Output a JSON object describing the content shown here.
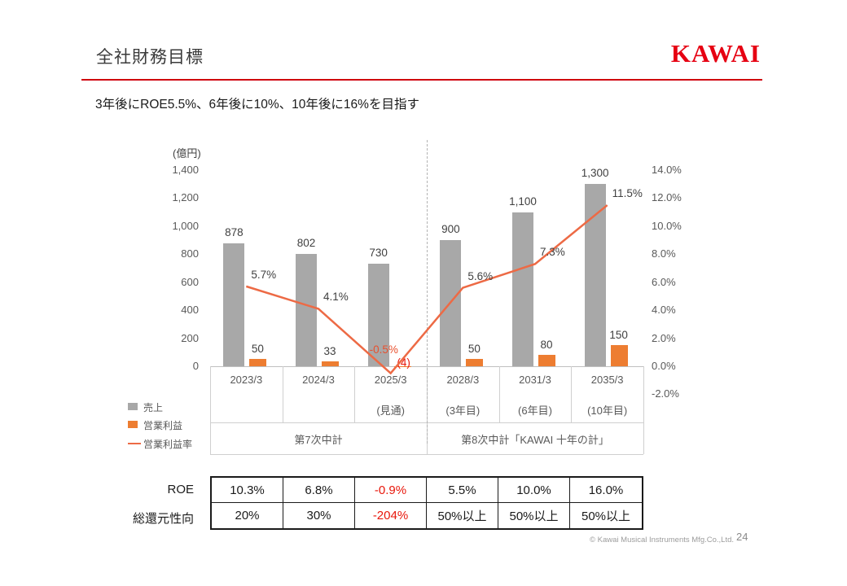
{
  "slide": {
    "title": "全社財務目標",
    "subtitle": "3年後にROE5.5%、6年後に10%、10年後に16%を目指す",
    "logo": "KAWAI",
    "footer_copyright": "© Kawai Musical Instruments Mfg.Co.,Ltd.",
    "page_number": "24"
  },
  "colors": {
    "kawai_red": "#e60012",
    "sales_gray": "#a8a8a8",
    "profit_orange": "#ed7d31",
    "margin_line": "#ed6a45",
    "negative_red": "#e8170b",
    "negative_label": "#e8502e",
    "axis_text": "#595959",
    "grid_gray": "#cfcfcf"
  },
  "chart_data": {
    "type": "bar+line combo",
    "unit_label": "(億円)",
    "categories": [
      "2023/3",
      "2024/3",
      "2025/3",
      "2028/3",
      "2031/3",
      "2035/3"
    ],
    "category_sublabels": [
      "",
      "",
      "(見通)",
      "(3年目)",
      "(6年目)",
      "(10年目)"
    ],
    "series": [
      {
        "name": "売上",
        "type": "bar",
        "axis": "left",
        "color": "#a8a8a8",
        "values": [
          878,
          802,
          730,
          900,
          1100,
          1300
        ],
        "labels": [
          "878",
          "802",
          "730",
          "900",
          "1,100",
          "1,300"
        ]
      },
      {
        "name": "営業利益",
        "type": "bar",
        "axis": "left",
        "color": "#ed7d31",
        "values": [
          50,
          33,
          -4,
          50,
          80,
          150
        ],
        "labels": [
          "50",
          "33",
          "(4)",
          "50",
          "80",
          "150"
        ]
      },
      {
        "name": "営業利益率",
        "type": "line",
        "axis": "right",
        "color": "#ed6a45",
        "values": [
          5.7,
          4.1,
          -0.5,
          5.6,
          7.3,
          11.5
        ],
        "labels": [
          "5.7%",
          "4.1%",
          "-0.5%",
          "5.6%",
          "7.3%",
          "11.5%"
        ]
      }
    ],
    "left_axis": {
      "min": 0,
      "max": 1400,
      "step": 200,
      "ticks": [
        "1,400",
        "1,200",
        "1,000",
        "800",
        "600",
        "400",
        "200",
        "0"
      ]
    },
    "right_axis": {
      "min": -2,
      "max": 14,
      "step": 2,
      "ticks": [
        "14.0%",
        "12.0%",
        "10.0%",
        "8.0%",
        "6.0%",
        "4.0%",
        "2.0%",
        "0.0%",
        "-2.0%"
      ]
    },
    "group_labels": [
      "第7次中計",
      "第8次中計「KAWAI 十年の計」"
    ],
    "divider_after_category_index": 2,
    "grid": "off",
    "legend_position": "bottom-left"
  },
  "table": {
    "rows": [
      {
        "label": "ROE",
        "values": [
          "10.3%",
          "6.8%",
          "-0.9%",
          "5.5%",
          "10.0%",
          "16.0%"
        ],
        "negative": [
          false,
          false,
          true,
          false,
          false,
          false
        ]
      },
      {
        "label": "総還元性向",
        "values": [
          "20%",
          "30%",
          "-204%",
          "50%以上",
          "50%以上",
          "50%以上"
        ],
        "negative": [
          false,
          false,
          true,
          false,
          false,
          false
        ]
      }
    ]
  }
}
